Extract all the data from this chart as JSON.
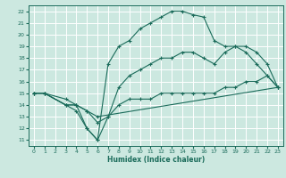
{
  "xlabel": "Humidex (Indice chaleur)",
  "xlim": [
    -0.5,
    23.5
  ],
  "ylim": [
    10.5,
    22.5
  ],
  "xticks": [
    0,
    1,
    2,
    3,
    4,
    5,
    6,
    7,
    8,
    9,
    10,
    11,
    12,
    13,
    14,
    15,
    16,
    17,
    18,
    19,
    20,
    21,
    22,
    23
  ],
  "yticks": [
    11,
    12,
    13,
    14,
    15,
    16,
    17,
    18,
    19,
    20,
    21,
    22
  ],
  "bg_color": "#cce8e0",
  "line_color": "#1a6b5a",
  "grid_color": "#ffffff",
  "lines": [
    {
      "x": [
        0,
        1,
        3,
        4,
        5,
        6,
        7,
        8,
        9,
        10,
        11,
        12,
        13,
        14,
        15,
        16,
        17,
        18,
        19,
        20,
        21,
        22,
        23
      ],
      "y": [
        15,
        15,
        14,
        14,
        12,
        11,
        17.5,
        19,
        19.5,
        20.5,
        21,
        21.5,
        22,
        22,
        21.7,
        21.5,
        19.5,
        19,
        19,
        18.5,
        17.5,
        16.5,
        15.5
      ]
    },
    {
      "x": [
        0,
        1,
        3,
        4,
        5,
        6,
        7,
        8,
        9,
        10,
        11,
        12,
        13,
        14,
        15,
        16,
        17,
        18,
        19,
        20,
        21,
        22,
        23
      ],
      "y": [
        15,
        15,
        14,
        13.5,
        12,
        11,
        13,
        15.5,
        16.5,
        17,
        17.5,
        18,
        18,
        18.5,
        18.5,
        18,
        17.5,
        18.5,
        19,
        19,
        18.5,
        17.5,
        15.5
      ]
    },
    {
      "x": [
        0,
        1,
        3,
        4,
        5,
        6,
        23
      ],
      "y": [
        15,
        15,
        14.5,
        14,
        13.5,
        13,
        15.5
      ]
    },
    {
      "x": [
        0,
        1,
        3,
        4,
        5,
        6,
        7,
        8,
        9,
        10,
        11,
        12,
        13,
        14,
        15,
        16,
        17,
        18,
        19,
        20,
        21,
        22,
        23
      ],
      "y": [
        15,
        15,
        14,
        14,
        13.5,
        12.5,
        13,
        14,
        14.5,
        14.5,
        14.5,
        15,
        15,
        15,
        15,
        15,
        15,
        15.5,
        15.5,
        16,
        16,
        16.5,
        15.5
      ]
    }
  ]
}
